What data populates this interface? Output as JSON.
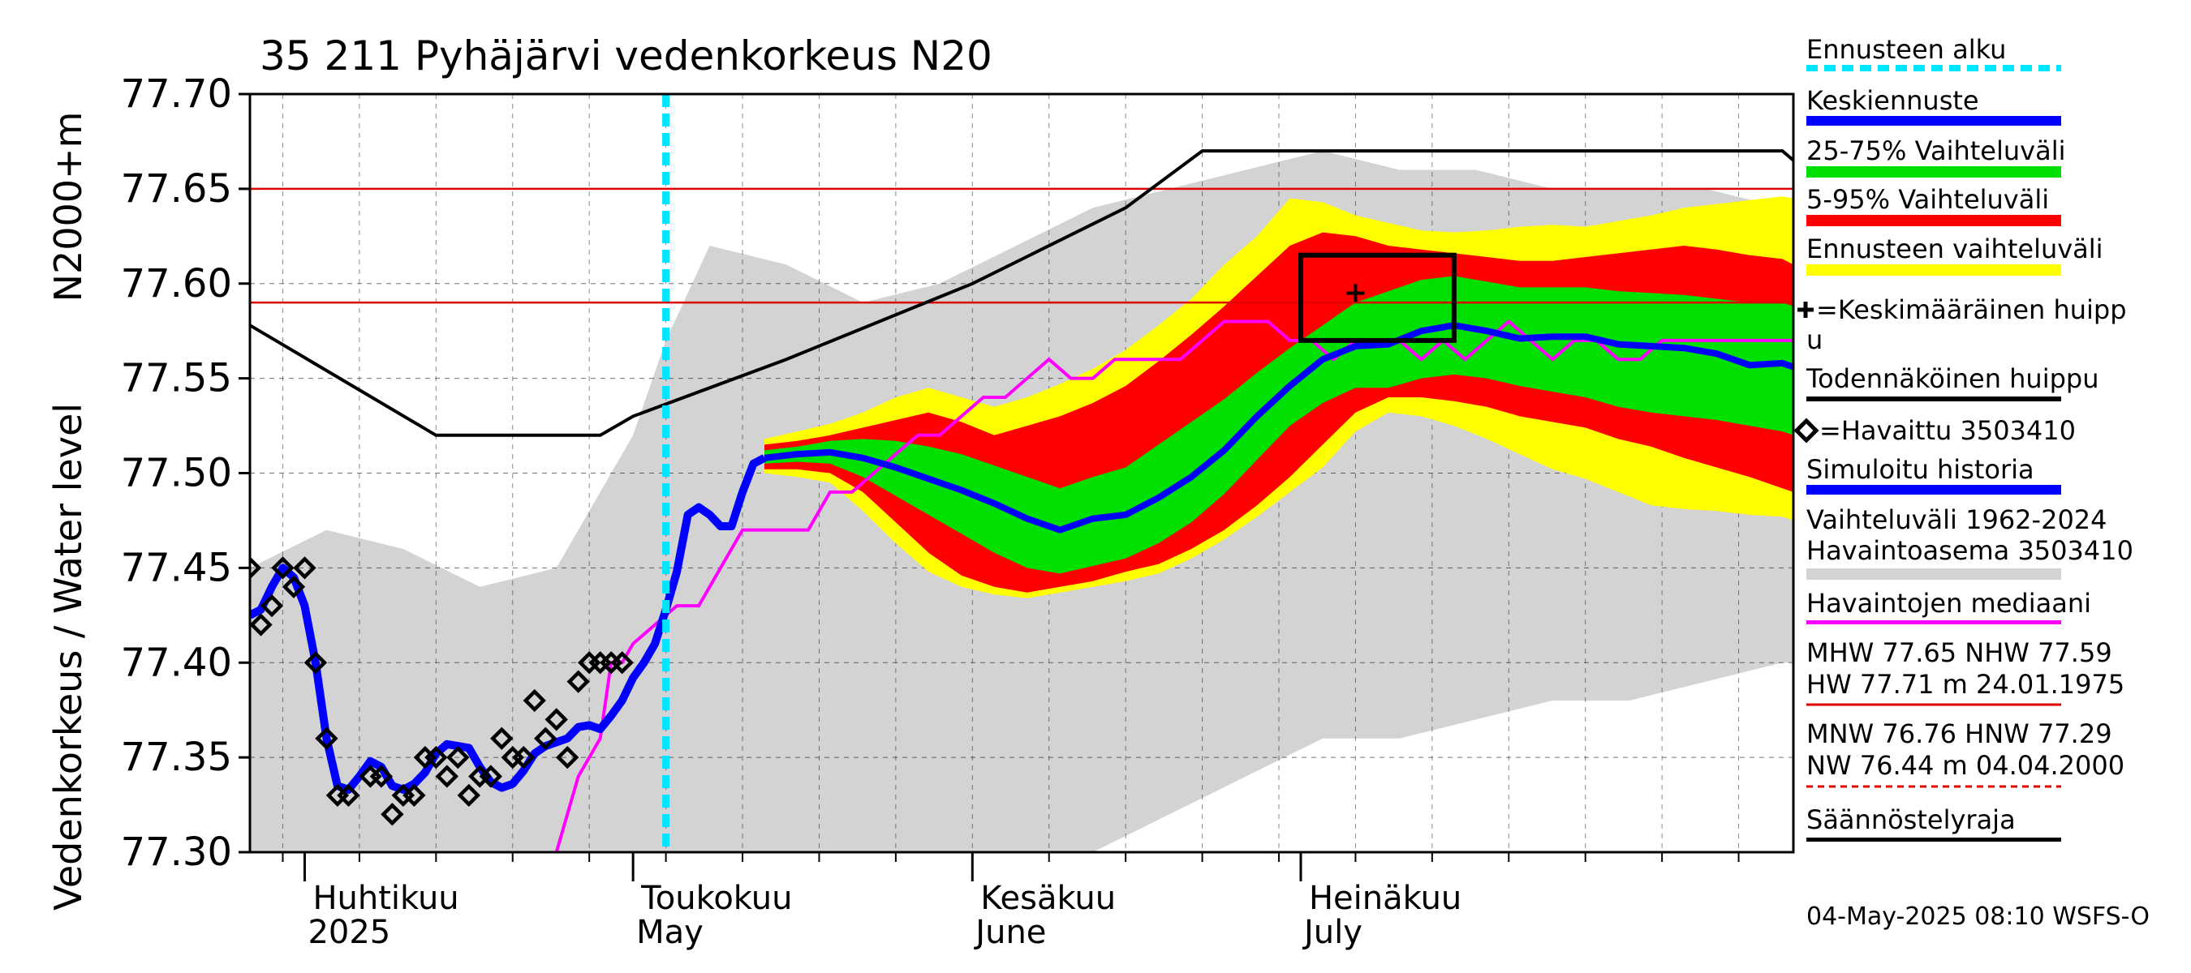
{
  "chart_data": {
    "type": "line",
    "title": "35 211 Pyhäjärvi vedenkorkeus N20",
    "ylabel": "Vedenkorkeus / Water level",
    "ylabel2": "N2000+m",
    "ylim": [
      77.3,
      77.7
    ],
    "yticks": [
      "77.70",
      "77.65",
      "77.60",
      "77.55",
      "77.50",
      "77.45",
      "77.40",
      "77.35",
      "77.30"
    ],
    "xlim": [
      "2025-03-27",
      "2025-08-15"
    ],
    "month_labels": [
      {
        "date": "2025-04-01",
        "line1": "Huhtikuu",
        "line2": "2025"
      },
      {
        "date": "2025-05-01",
        "line1": "Toukokuu",
        "line2": "May"
      },
      {
        "date": "2025-06-01",
        "line1": "Kesäkuu",
        "line2": "June"
      },
      {
        "date": "2025-07-01",
        "line1": "Heinäkuu",
        "line2": "July"
      }
    ],
    "forecast_start": "2025-05-04",
    "reference_lines": [
      {
        "name": "MHW",
        "value": 77.65
      },
      {
        "name": "NHW",
        "value": 77.59
      }
    ],
    "peak_box": {
      "x0": "2025-07-01",
      "x1": "2025-07-15",
      "y0": 77.57,
      "y1": 77.615
    },
    "mean_peak": {
      "x": "2025-07-06",
      "y": 77.595
    },
    "colors": {
      "historical_range": "#d3d3d3",
      "forecast_range": "#ffff00",
      "band_5_95": "#ff0000",
      "band_25_75": "#00e000",
      "mean_forecast": "#0000ff",
      "simulated": "#0000ff",
      "median": "#ff00ff",
      "forecast_start": "#00e5ff",
      "regulation": "#000000",
      "reference": "#e00000"
    },
    "series": {
      "simulated": {
        "x": [
          "2025-03-27",
          "2025-03-28",
          "2025-03-29",
          "2025-03-30",
          "2025-03-31",
          "2025-04-01",
          "2025-04-02",
          "2025-04-03",
          "2025-04-04",
          "2025-04-05",
          "2025-04-06",
          "2025-04-07",
          "2025-04-08",
          "2025-04-09",
          "2025-04-10",
          "2025-04-11",
          "2025-04-12",
          "2025-04-13",
          "2025-04-14",
          "2025-04-15",
          "2025-04-16",
          "2025-04-17",
          "2025-04-18",
          "2025-04-19",
          "2025-04-20",
          "2025-04-21",
          "2025-04-22",
          "2025-04-23",
          "2025-04-24",
          "2025-04-25",
          "2025-04-26",
          "2025-04-27",
          "2025-04-28",
          "2025-04-29",
          "2025-04-30",
          "2025-05-01",
          "2025-05-02",
          "2025-05-03",
          "2025-05-04",
          "2025-05-05",
          "2025-05-06",
          "2025-05-07",
          "2025-05-08",
          "2025-05-09",
          "2025-05-10",
          "2025-05-11",
          "2025-05-12",
          "2025-05-13"
        ],
        "y": [
          77.425,
          77.428,
          77.44,
          77.45,
          77.445,
          77.43,
          77.4,
          77.36,
          77.335,
          77.333,
          77.34,
          77.348,
          77.345,
          77.335,
          77.333,
          77.336,
          77.342,
          77.352,
          77.357,
          77.356,
          77.355,
          77.345,
          77.337,
          77.334,
          77.336,
          77.343,
          77.352,
          77.356,
          77.358,
          77.36,
          77.366,
          77.367,
          77.365,
          77.372,
          77.38,
          77.392,
          77.4,
          77.41,
          77.428,
          77.448,
          77.478,
          77.482,
          77.478,
          77.472,
          77.472,
          77.49,
          77.505,
          77.508
        ]
      },
      "observed": {
        "x": [
          "2025-03-27",
          "2025-03-28",
          "2025-03-29",
          "2025-03-30",
          "2025-03-31",
          "2025-04-01",
          "2025-04-02",
          "2025-04-03",
          "2025-04-04",
          "2025-04-05",
          "2025-04-07",
          "2025-04-08",
          "2025-04-09",
          "2025-04-10",
          "2025-04-11",
          "2025-04-12",
          "2025-04-13",
          "2025-04-14",
          "2025-04-15",
          "2025-04-16",
          "2025-04-17",
          "2025-04-18",
          "2025-04-19",
          "2025-04-20",
          "2025-04-21",
          "2025-04-22",
          "2025-04-23",
          "2025-04-24",
          "2025-04-25",
          "2025-04-26",
          "2025-04-27",
          "2025-04-28",
          "2025-04-29",
          "2025-04-30"
        ],
        "y": [
          77.45,
          77.42,
          77.43,
          77.45,
          77.44,
          77.45,
          77.4,
          77.36,
          77.33,
          77.33,
          77.34,
          77.34,
          77.32,
          77.33,
          77.33,
          77.35,
          77.35,
          77.34,
          77.35,
          77.33,
          77.34,
          77.34,
          77.36,
          77.35,
          77.35,
          77.38,
          77.36,
          77.37,
          77.35,
          77.39,
          77.4,
          77.4,
          77.4,
          77.4
        ]
      },
      "median": {
        "x": [
          "2025-04-24",
          "2025-04-26",
          "2025-04-28",
          "2025-04-29",
          "2025-04-30",
          "2025-05-01",
          "2025-05-03",
          "2025-05-05",
          "2025-05-07",
          "2025-05-09",
          "2025-05-11",
          "2025-05-13",
          "2025-05-15",
          "2025-05-17",
          "2025-05-19",
          "2025-05-21",
          "2025-05-23",
          "2025-05-25",
          "2025-05-27",
          "2025-05-29",
          "2025-05-31",
          "2025-06-02",
          "2025-06-04",
          "2025-06-06",
          "2025-06-08",
          "2025-06-10",
          "2025-06-12",
          "2025-06-14",
          "2025-06-16",
          "2025-06-18",
          "2025-06-20",
          "2025-06-22",
          "2025-06-24",
          "2025-06-26",
          "2025-06-28",
          "2025-06-30",
          "2025-07-02",
          "2025-07-04",
          "2025-07-06",
          "2025-07-08",
          "2025-07-10",
          "2025-07-12",
          "2025-07-14",
          "2025-07-16",
          "2025-07-18",
          "2025-07-20",
          "2025-07-22",
          "2025-07-24",
          "2025-07-26",
          "2025-07-28",
          "2025-07-30",
          "2025-08-01",
          "2025-08-03",
          "2025-08-05",
          "2025-08-07",
          "2025-08-09",
          "2025-08-11",
          "2025-08-13",
          "2025-08-15"
        ],
        "y": [
          77.3,
          77.34,
          77.36,
          77.4,
          77.4,
          77.41,
          77.42,
          77.43,
          77.43,
          77.45,
          77.47,
          77.47,
          77.47,
          77.47,
          77.49,
          77.49,
          77.5,
          77.51,
          77.52,
          77.52,
          77.53,
          77.54,
          77.54,
          77.55,
          77.56,
          77.55,
          77.55,
          77.56,
          77.56,
          77.56,
          77.56,
          77.57,
          77.58,
          77.58,
          77.58,
          77.57,
          77.57,
          77.56,
          77.57,
          77.57,
          77.57,
          77.56,
          77.57,
          77.56,
          77.57,
          77.58,
          77.57,
          77.56,
          77.57,
          77.57,
          77.56,
          77.56,
          77.57,
          77.57,
          77.57,
          77.57,
          77.57,
          77.57,
          77.57
        ]
      },
      "mean_forecast": {
        "x": [
          "2025-05-13",
          "2025-05-16",
          "2025-05-19",
          "2025-05-22",
          "2025-05-25",
          "2025-05-28",
          "2025-05-31",
          "2025-06-03",
          "2025-06-06",
          "2025-06-09",
          "2025-06-12",
          "2025-06-15",
          "2025-06-18",
          "2025-06-21",
          "2025-06-24",
          "2025-06-27",
          "2025-06-30",
          "2025-07-03",
          "2025-07-06",
          "2025-07-09",
          "2025-07-12",
          "2025-07-15",
          "2025-07-18",
          "2025-07-21",
          "2025-07-24",
          "2025-07-27",
          "2025-07-30",
          "2025-08-02",
          "2025-08-05",
          "2025-08-08",
          "2025-08-11",
          "2025-08-14",
          "2025-08-15"
        ],
        "y": [
          77.508,
          77.51,
          77.511,
          77.508,
          77.503,
          77.497,
          77.491,
          77.484,
          77.476,
          77.47,
          77.476,
          77.478,
          77.487,
          77.498,
          77.512,
          77.53,
          77.546,
          77.56,
          77.567,
          77.568,
          77.575,
          77.578,
          77.575,
          77.571,
          77.572,
          77.572,
          77.568,
          77.567,
          77.566,
          77.563,
          77.557,
          77.558,
          77.556
        ]
      },
      "band_25": [
        77.505,
        77.506,
        77.505,
        77.498,
        77.488,
        77.478,
        77.468,
        77.458,
        77.45,
        77.447,
        77.451,
        77.455,
        77.463,
        77.474,
        77.489,
        77.507,
        77.525,
        77.537,
        77.545,
        77.545,
        77.55,
        77.552,
        77.55,
        77.546,
        77.543,
        77.54,
        77.535,
        77.532,
        77.53,
        77.528,
        77.525,
        77.522,
        77.52
      ],
      "band_75": [
        77.512,
        77.514,
        77.517,
        77.518,
        77.517,
        77.514,
        77.51,
        77.504,
        77.498,
        77.492,
        77.498,
        77.503,
        77.515,
        77.527,
        77.539,
        77.553,
        77.566,
        77.578,
        77.59,
        77.596,
        77.602,
        77.604,
        77.601,
        77.598,
        77.598,
        77.598,
        77.596,
        77.595,
        77.594,
        77.592,
        77.59,
        77.59,
        77.588
      ],
      "band_5": [
        77.502,
        77.502,
        77.5,
        77.49,
        77.474,
        77.458,
        77.446,
        77.44,
        77.437,
        77.44,
        77.443,
        77.448,
        77.452,
        77.46,
        77.47,
        77.483,
        77.498,
        77.515,
        77.532,
        77.54,
        77.54,
        77.538,
        77.535,
        77.53,
        77.527,
        77.524,
        77.518,
        77.514,
        77.508,
        77.503,
        77.498,
        77.492,
        77.49
      ],
      "band_95": [
        77.515,
        77.517,
        77.52,
        77.524,
        77.528,
        77.532,
        77.527,
        77.52,
        77.525,
        77.53,
        77.537,
        77.546,
        77.559,
        77.573,
        77.588,
        77.604,
        77.62,
        77.627,
        77.625,
        77.62,
        77.618,
        77.616,
        77.614,
        77.612,
        77.612,
        77.614,
        77.616,
        77.618,
        77.62,
        77.618,
        77.615,
        77.613,
        77.61
      ],
      "fc_min": [
        77.5,
        77.498,
        77.495,
        77.48,
        77.463,
        77.448,
        77.44,
        77.436,
        77.434,
        77.437,
        77.44,
        77.443,
        77.447,
        77.455,
        77.465,
        77.477,
        77.49,
        77.503,
        77.522,
        77.532,
        77.53,
        77.525,
        77.518,
        77.51,
        77.502,
        77.497,
        77.49,
        77.483,
        77.481,
        77.48,
        77.478,
        77.477,
        77.475
      ],
      "fc_max": [
        77.518,
        77.522,
        77.526,
        77.532,
        77.54,
        77.545,
        77.54,
        77.535,
        77.54,
        77.547,
        77.555,
        77.565,
        77.578,
        77.592,
        77.61,
        77.625,
        77.645,
        77.643,
        77.636,
        77.632,
        77.628,
        77.627,
        77.628,
        77.63,
        77.631,
        77.63,
        77.633,
        77.636,
        77.64,
        77.642,
        77.644,
        77.646,
        77.645
      ],
      "hist_range": {
        "x": [
          "2025-03-27",
          "2025-04-03",
          "2025-04-10",
          "2025-04-17",
          "2025-04-24",
          "2025-05-01",
          "2025-05-04",
          "2025-05-08",
          "2025-05-15",
          "2025-05-22",
          "2025-05-29",
          "2025-06-05",
          "2025-06-12",
          "2025-06-19",
          "2025-06-26",
          "2025-07-03",
          "2025-07-10",
          "2025-07-17",
          "2025-07-24",
          "2025-07-31",
          "2025-08-07",
          "2025-08-14",
          "2025-08-15"
        ],
        "lo": [
          77.3,
          77.3,
          77.3,
          77.3,
          77.3,
          77.3,
          77.3,
          77.3,
          77.3,
          77.3,
          77.3,
          77.3,
          77.3,
          77.32,
          77.34,
          77.36,
          77.36,
          77.37,
          77.38,
          77.38,
          77.39,
          77.4,
          77.4
        ],
        "hi": [
          77.45,
          77.47,
          77.46,
          77.44,
          77.45,
          77.52,
          77.57,
          77.62,
          77.61,
          77.59,
          77.6,
          77.62,
          77.64,
          77.65,
          77.66,
          77.67,
          77.66,
          77.66,
          77.65,
          77.65,
          77.65,
          77.64,
          77.64
        ]
      },
      "regulation": {
        "x": [
          "2025-03-27",
          "2025-04-13",
          "2025-04-28",
          "2025-05-01",
          "2025-05-15",
          "2025-06-01",
          "2025-06-15",
          "2025-06-22",
          "2025-07-01",
          "2025-08-14",
          "2025-08-15"
        ],
        "y": [
          77.578,
          77.52,
          77.52,
          77.53,
          77.56,
          77.6,
          77.64,
          77.67,
          77.67,
          77.67,
          77.665
        ]
      }
    }
  },
  "legend": {
    "items": [
      {
        "label": "Ennusteen alku"
      },
      {
        "label": "Keskiennuste"
      },
      {
        "label": "25-75% Vaihteluväli"
      },
      {
        "label": "5-95% Vaihteluväli"
      },
      {
        "label": "Ennusteen vaihteluväli"
      },
      {
        "label": "=Keskimääräinen huipp"
      },
      {
        "label": "Todennäköinen huippu"
      },
      {
        "label": "=Havaittu 3503410"
      },
      {
        "label": "Simuloitu historia"
      },
      {
        "label": "Havaintojen mediaani"
      },
      {
        "label": "Säännöstelyraja"
      }
    ],
    "peak_wrap": "u",
    "range_line1": "Vaihteluväli 1962-2024",
    "range_line2": " Havaintoasema 3503410",
    "stats_line1": "MHW  77.65 NHW  77.59",
    "stats_line2": "HW  77.71 m 24.01.1975",
    "stats_line3": "MNW  76.76 HNW  77.29",
    "stats_line4": "NW  76.44 m 04.04.2000"
  },
  "footer": "04-May-2025 08:10 WSFS-O"
}
